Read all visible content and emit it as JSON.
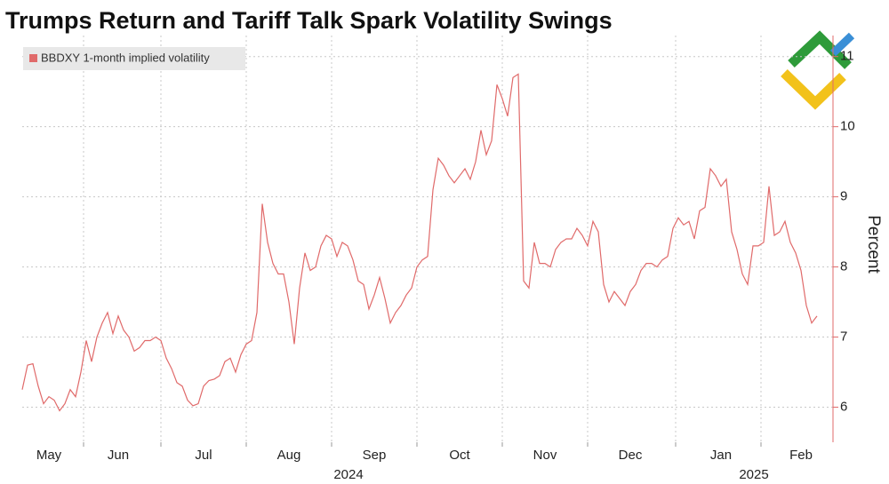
{
  "chart_data": {
    "type": "line",
    "title": "Trumps Return and Tariff Talk Spark Volatility Swings",
    "y_label": "Percent",
    "year_labels": [
      "2024",
      "2025"
    ],
    "categories": [
      null,
      null,
      null,
      null,
      null,
      "May",
      null,
      null,
      null,
      null,
      null,
      null,
      null,
      null,
      null,
      null,
      null,
      null,
      "Jun",
      null,
      null,
      null,
      null,
      null,
      null,
      null,
      null,
      null,
      null,
      null,
      null,
      null,
      null,
      null,
      "Jul",
      null,
      null,
      null,
      null,
      null,
      null,
      null,
      null,
      null,
      null,
      null,
      null,
      null,
      null,
      null,
      "Aug",
      null,
      null,
      null,
      null,
      null,
      null,
      null,
      null,
      null,
      null,
      null,
      null,
      null,
      null,
      null,
      "Sep",
      null,
      null,
      null,
      null,
      null,
      null,
      null,
      null,
      null,
      null,
      null,
      null,
      null,
      null,
      null,
      "Oct",
      null,
      null,
      null,
      null,
      null,
      null,
      null,
      null,
      null,
      null,
      null,
      null,
      null,
      null,
      null,
      "Nov",
      null,
      null,
      null,
      null,
      null,
      null,
      null,
      null,
      null,
      null,
      null,
      null,
      null,
      null,
      null,
      "Dec",
      null,
      null,
      null,
      null,
      null,
      null,
      null,
      null,
      null,
      null,
      null,
      null,
      null,
      null,
      null,
      null,
      "Jan",
      null,
      null,
      null,
      null,
      null,
      null,
      null,
      null,
      null,
      null,
      null,
      null,
      null,
      null,
      "Feb",
      null,
      null,
      null
    ],
    "series": [
      {
        "name": "BBDXY 1-month implied volatility",
        "color": "#e06a6a",
        "values": [
          6.25,
          6.6,
          6.62,
          6.3,
          6.05,
          6.15,
          6.1,
          5.95,
          6.05,
          6.25,
          6.15,
          6.5,
          6.95,
          6.65,
          7.0,
          7.2,
          7.35,
          7.05,
          7.3,
          7.1,
          7.0,
          6.8,
          6.85,
          6.95,
          6.95,
          7.0,
          6.95,
          6.7,
          6.55,
          6.35,
          6.3,
          6.1,
          6.02,
          6.05,
          6.3,
          6.38,
          6.4,
          6.45,
          6.65,
          6.7,
          6.5,
          6.75,
          6.9,
          6.95,
          7.35,
          8.9,
          8.35,
          8.05,
          7.9,
          7.9,
          7.5,
          6.9,
          7.7,
          8.2,
          7.95,
          8.0,
          8.3,
          8.45,
          8.4,
          8.15,
          8.35,
          8.3,
          8.1,
          7.8,
          7.75,
          7.4,
          7.6,
          7.85,
          7.55,
          7.2,
          7.35,
          7.45,
          7.6,
          7.7,
          8.0,
          8.1,
          8.15,
          9.1,
          9.55,
          9.45,
          9.3,
          9.2,
          9.3,
          9.4,
          9.25,
          9.5,
          9.95,
          9.6,
          9.8,
          10.6,
          10.4,
          10.15,
          10.7,
          10.75,
          7.8,
          7.7,
          8.35,
          8.05,
          8.05,
          8.0,
          8.25,
          8.35,
          8.4,
          8.4,
          8.55,
          8.45,
          8.3,
          8.65,
          8.5,
          7.75,
          7.5,
          7.65,
          7.55,
          7.45,
          7.65,
          7.75,
          7.95,
          8.05,
          8.05,
          8.0,
          8.1,
          8.15,
          8.55,
          8.7,
          8.6,
          8.65,
          8.4,
          8.8,
          8.85,
          9.4,
          9.3,
          9.15,
          9.25,
          8.5,
          8.25,
          7.9,
          7.75,
          8.3,
          8.3,
          8.35,
          9.15,
          8.45,
          8.5,
          8.65,
          8.35,
          8.2,
          7.95,
          7.45,
          7.2,
          7.3
        ]
      }
    ],
    "ylim": [
      5.5,
      11.3
    ],
    "yticks": [
      6,
      7,
      8,
      9,
      10,
      11
    ],
    "grid": true,
    "legend": "upper left"
  }
}
